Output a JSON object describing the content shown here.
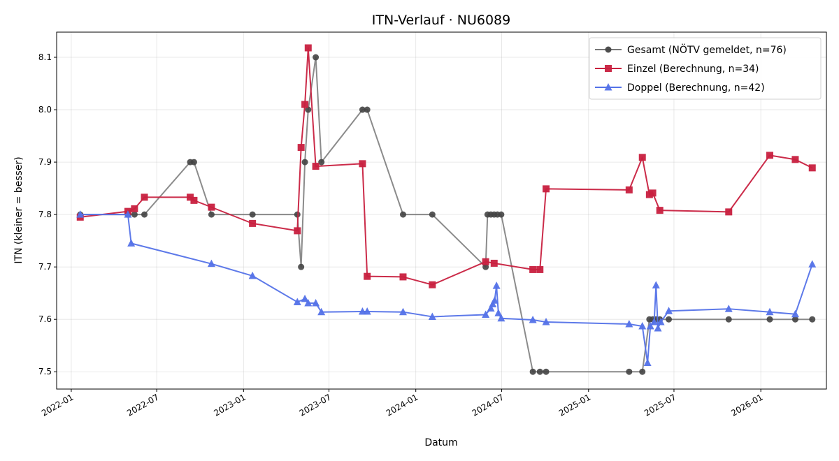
{
  "chart_data": {
    "type": "line",
    "title": "ITN-Verlauf · NU6089",
    "xlabel": "Datum",
    "ylabel": "ITN  (kleiner = besser)",
    "x_type": "date",
    "xlim": [
      "2021-12-01",
      "2026-05-20"
    ],
    "ylim": [
      7.467,
      8.148
    ],
    "x_ticks": [
      "2022-01-01",
      "2022-07-01",
      "2023-01-01",
      "2023-07-01",
      "2024-01-01",
      "2024-07-01",
      "2025-01-01",
      "2025-07-01",
      "2026-01-01"
    ],
    "x_tick_labels": [
      "2022-01",
      "2022-07",
      "2023-01",
      "2023-07",
      "2024-01",
      "2024-07",
      "2025-01",
      "2025-07",
      "2026-01"
    ],
    "y_ticks": [
      7.5,
      7.6,
      7.7,
      7.8,
      7.9,
      8.0,
      8.1
    ],
    "y_tick_labels": [
      "7.5",
      "7.6",
      "7.7",
      "7.8",
      "7.9",
      "8.0",
      "8.1"
    ],
    "grid": true,
    "legend_position": "top-right",
    "series": [
      {
        "name": "Gesamt (NÖTV gemeldet, n=76)",
        "color": "#777777",
        "marker": "circle",
        "marker_color": "#444444",
        "points": [
          [
            "2022-01-20",
            7.8
          ],
          [
            "2022-05-01",
            7.8
          ],
          [
            "2022-05-15",
            7.8
          ],
          [
            "2022-06-05",
            7.8
          ],
          [
            "2022-09-10",
            7.9
          ],
          [
            "2022-09-18",
            7.9
          ],
          [
            "2022-10-25",
            7.8
          ],
          [
            "2023-01-20",
            7.8
          ],
          [
            "2023-04-25",
            7.8
          ],
          [
            "2023-05-03",
            7.7
          ],
          [
            "2023-05-11",
            7.9
          ],
          [
            "2023-05-18",
            8.0
          ],
          [
            "2023-06-03",
            8.1
          ],
          [
            "2023-06-15",
            7.9
          ],
          [
            "2023-09-10",
            8.0
          ],
          [
            "2023-09-20",
            8.0
          ],
          [
            "2023-12-05",
            7.8
          ],
          [
            "2024-02-05",
            7.8
          ],
          [
            "2024-05-28",
            7.7
          ],
          [
            "2024-06-01",
            7.8
          ],
          [
            "2024-06-08",
            7.8
          ],
          [
            "2024-06-15",
            7.8
          ],
          [
            "2024-06-22",
            7.8
          ],
          [
            "2024-06-30",
            7.8
          ],
          [
            "2024-09-05",
            7.5
          ],
          [
            "2024-09-20",
            7.5
          ],
          [
            "2024-10-03",
            7.5
          ],
          [
            "2025-03-28",
            7.5
          ],
          [
            "2025-04-25",
            7.5
          ],
          [
            "2025-05-10",
            7.6
          ],
          [
            "2025-05-17",
            7.6
          ],
          [
            "2025-05-24",
            7.6
          ],
          [
            "2025-06-01",
            7.6
          ],
          [
            "2025-06-20",
            7.6
          ],
          [
            "2025-10-25",
            7.6
          ],
          [
            "2026-01-20",
            7.6
          ],
          [
            "2026-03-15",
            7.6
          ],
          [
            "2026-04-20",
            7.6
          ]
        ]
      },
      {
        "name": "Einzel (Berechnung, n=34)",
        "color": "#c8203f",
        "marker": "square",
        "marker_color": "#c8203f",
        "points": [
          [
            "2022-01-20",
            7.795
          ],
          [
            "2022-05-01",
            7.806
          ],
          [
            "2022-05-15",
            7.811
          ],
          [
            "2022-06-05",
            7.833
          ],
          [
            "2022-09-10",
            7.833
          ],
          [
            "2022-09-18",
            7.827
          ],
          [
            "2022-10-25",
            7.814
          ],
          [
            "2023-01-20",
            7.783
          ],
          [
            "2023-04-25",
            7.769
          ],
          [
            "2023-05-03",
            7.928
          ],
          [
            "2023-05-11",
            8.01
          ],
          [
            "2023-05-18",
            8.118
          ],
          [
            "2023-06-03",
            7.892
          ],
          [
            "2023-09-10",
            7.897
          ],
          [
            "2023-09-20",
            7.682
          ],
          [
            "2023-12-05",
            7.681
          ],
          [
            "2024-02-05",
            7.666
          ],
          [
            "2024-05-28",
            7.71
          ],
          [
            "2024-06-15",
            7.707
          ],
          [
            "2024-09-05",
            7.695
          ],
          [
            "2024-09-20",
            7.695
          ],
          [
            "2024-10-03",
            7.849
          ],
          [
            "2025-03-28",
            7.847
          ],
          [
            "2025-04-25",
            7.909
          ],
          [
            "2025-05-10",
            7.838
          ],
          [
            "2025-05-17",
            7.841
          ],
          [
            "2025-06-01",
            7.808
          ],
          [
            "2025-10-25",
            7.805
          ],
          [
            "2026-01-20",
            7.913
          ],
          [
            "2026-03-15",
            7.905
          ],
          [
            "2026-04-20",
            7.889
          ]
        ]
      },
      {
        "name": "Doppel (Berechnung, n=42)",
        "color": "#5472e8",
        "marker": "triangle",
        "marker_color": "#5472e8",
        "points": [
          [
            "2022-01-20",
            7.8
          ],
          [
            "2022-05-01",
            7.8
          ],
          [
            "2022-05-08",
            7.745
          ],
          [
            "2022-10-25",
            7.706
          ],
          [
            "2023-01-20",
            7.683
          ],
          [
            "2023-04-25",
            7.633
          ],
          [
            "2023-05-11",
            7.639
          ],
          [
            "2023-05-18",
            7.631
          ],
          [
            "2023-06-03",
            7.631
          ],
          [
            "2023-06-15",
            7.614
          ],
          [
            "2023-09-10",
            7.615
          ],
          [
            "2023-09-20",
            7.615
          ],
          [
            "2023-12-05",
            7.614
          ],
          [
            "2024-02-05",
            7.605
          ],
          [
            "2024-05-28",
            7.609
          ],
          [
            "2024-06-08",
            7.621
          ],
          [
            "2024-06-12",
            7.629
          ],
          [
            "2024-06-16",
            7.636
          ],
          [
            "2024-06-20",
            7.664
          ],
          [
            "2024-06-24",
            7.612
          ],
          [
            "2024-06-30",
            7.602
          ],
          [
            "2024-09-05",
            7.599
          ],
          [
            "2024-10-03",
            7.595
          ],
          [
            "2025-03-28",
            7.591
          ],
          [
            "2025-04-25",
            7.587
          ],
          [
            "2025-05-06",
            7.517
          ],
          [
            "2025-05-12",
            7.587
          ],
          [
            "2025-05-20",
            7.595
          ],
          [
            "2025-05-24",
            7.665
          ],
          [
            "2025-05-28",
            7.583
          ],
          [
            "2025-06-03",
            7.595
          ],
          [
            "2025-06-20",
            7.616
          ],
          [
            "2025-10-25",
            7.62
          ],
          [
            "2026-01-20",
            7.614
          ],
          [
            "2026-03-15",
            7.61
          ],
          [
            "2026-04-20",
            7.705
          ]
        ]
      }
    ]
  }
}
